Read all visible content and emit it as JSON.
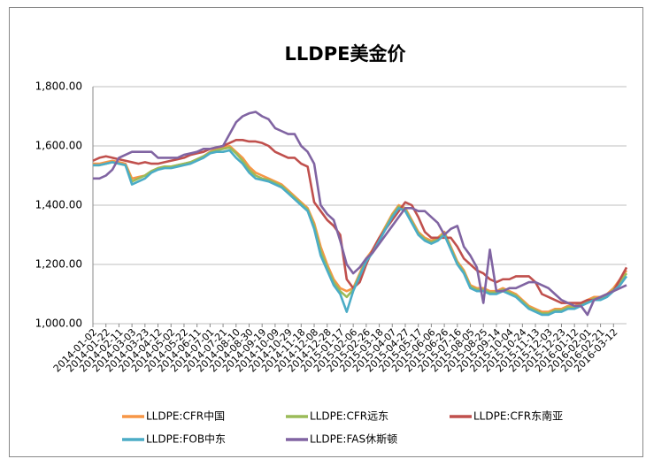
{
  "chart_data": {
    "type": "line",
    "title": "LLDPE美金价",
    "categories": [
      "2014-01-02",
      null,
      "2014-01-22",
      null,
      "2014-02-11",
      null,
      "2014-03-03",
      null,
      "2014-03-23",
      null,
      "2014-04-12",
      null,
      "2014-05-02",
      null,
      "2014-05-22",
      null,
      "2014-06-11",
      null,
      "2014-07-01",
      null,
      "2014-07-21",
      null,
      "2014-08-10",
      null,
      "2014-08-30",
      null,
      "2014-09-19",
      null,
      "2014-10-09",
      null,
      "2014-10-29",
      null,
      "2014-11-18",
      null,
      "2014-12-08",
      null,
      "2014-12-28",
      null,
      "2015-01-17",
      null,
      "2015-02-06",
      null,
      "2015-02-26",
      null,
      "2015-03-18",
      null,
      "2015-04-07",
      null,
      "2015-04-27",
      null,
      "2015-05-17",
      null,
      "2015-06-06",
      null,
      "2015-06-26",
      null,
      "2015-07-16",
      null,
      "2015-08-05",
      null,
      "2015-08-25",
      null,
      "2015-09-14",
      null,
      "2015-10-04",
      null,
      "2015-10-24",
      null,
      "2015-11-13",
      null,
      "2015-12-03",
      null,
      "2015-12-23",
      null,
      "2016-01-12",
      null,
      "2016-02-01",
      null,
      "2016-02-21",
      null,
      "2016-03-12",
      null,
      null
    ],
    "series": [
      {
        "name": "LLDPE:CFR中国",
        "color": "#f79646",
        "values": [
          1540,
          1540,
          1545,
          1550,
          1545,
          1540,
          1490,
          1495,
          1500,
          1515,
          1525,
          1530,
          1530,
          1535,
          1540,
          1545,
          1555,
          1565,
          1580,
          1590,
          1595,
          1600,
          1580,
          1560,
          1530,
          1510,
          1500,
          1490,
          1480,
          1470,
          1450,
          1430,
          1410,
          1390,
          1340,
          1260,
          1200,
          1150,
          1120,
          1110,
          1120,
          1170,
          1220,
          1250,
          1290,
          1330,
          1370,
          1400,
          1390,
          1350,
          1310,
          1290,
          1280,
          1290,
          1310,
          1260,
          1210,
          1180,
          1130,
          1120,
          1120,
          1110,
          1110,
          1120,
          1110,
          1100,
          1080,
          1060,
          1050,
          1040,
          1040,
          1050,
          1050,
          1060,
          1060,
          1070,
          1080,
          1090,
          1090,
          1100,
          1120,
          1150,
          1180
        ]
      },
      {
        "name": "LLDPE:CFR远东",
        "color": "#9bbb59",
        "values": [
          1535,
          1535,
          1540,
          1545,
          1540,
          1535,
          1480,
          1490,
          1500,
          1515,
          1525,
          1530,
          1530,
          1535,
          1540,
          1545,
          1555,
          1565,
          1578,
          1585,
          1590,
          1595,
          1575,
          1550,
          1520,
          1500,
          1490,
          1485,
          1475,
          1465,
          1445,
          1425,
          1405,
          1385,
          1330,
          1245,
          1190,
          1140,
          1110,
          1090,
          1115,
          1165,
          1215,
          1245,
          1285,
          1325,
          1365,
          1395,
          1385,
          1345,
          1305,
          1285,
          1275,
          1285,
          1305,
          1255,
          1205,
          1175,
          1125,
          1115,
          1115,
          1105,
          1105,
          1115,
          1105,
          1095,
          1075,
          1055,
          1045,
          1035,
          1035,
          1045,
          1045,
          1055,
          1055,
          1065,
          1075,
          1085,
          1085,
          1095,
          1115,
          1140,
          1170
        ]
      },
      {
        "name": "LLDPE:CFR东南亚",
        "color": "#c0504d",
        "values": [
          1550,
          1560,
          1565,
          1560,
          1555,
          1550,
          1545,
          1540,
          1545,
          1540,
          1540,
          1545,
          1550,
          1555,
          1560,
          1570,
          1575,
          1580,
          1590,
          1595,
          1600,
          1610,
          1620,
          1620,
          1615,
          1615,
          1610,
          1600,
          1580,
          1570,
          1560,
          1560,
          1540,
          1530,
          1410,
          1380,
          1350,
          1330,
          1300,
          1150,
          1120,
          1140,
          1200,
          1250,
          1290,
          1320,
          1350,
          1380,
          1410,
          1400,
          1360,
          1310,
          1290,
          1290,
          1290,
          1290,
          1260,
          1220,
          1200,
          1180,
          1170,
          1150,
          1140,
          1150,
          1150,
          1160,
          1160,
          1160,
          1140,
          1100,
          1090,
          1080,
          1070,
          1070,
          1070,
          1070,
          1080,
          1080,
          1090,
          1100,
          1110,
          1150,
          1190
        ]
      },
      {
        "name": "LLDPE:FOB中东",
        "color": "#4bacc6",
        "values": [
          1535,
          1535,
          1540,
          1545,
          1540,
          1535,
          1470,
          1480,
          1490,
          1510,
          1520,
          1525,
          1525,
          1530,
          1535,
          1540,
          1550,
          1560,
          1575,
          1580,
          1580,
          1585,
          1560,
          1540,
          1510,
          1490,
          1485,
          1480,
          1470,
          1460,
          1440,
          1420,
          1400,
          1380,
          1320,
          1230,
          1180,
          1130,
          1100,
          1040,
          1110,
          1160,
          1210,
          1240,
          1280,
          1320,
          1360,
          1390,
          1380,
          1340,
          1300,
          1280,
          1270,
          1280,
          1300,
          1250,
          1200,
          1170,
          1120,
          1110,
          1110,
          1100,
          1100,
          1110,
          1100,
          1090,
          1070,
          1050,
          1040,
          1030,
          1030,
          1040,
          1040,
          1050,
          1050,
          1060,
          1070,
          1080,
          1080,
          1090,
          1110,
          1130,
          1160
        ]
      },
      {
        "name": "LLDPE:FAS休斯顿",
        "color": "#8064a2",
        "values": [
          1490,
          1490,
          1500,
          1520,
          1560,
          1570,
          1580,
          1580,
          1580,
          1580,
          1560,
          1560,
          1560,
          1560,
          1570,
          1575,
          1580,
          1590,
          1590,
          1595,
          1600,
          1640,
          1680,
          1700,
          1710,
          1715,
          1700,
          1690,
          1660,
          1650,
          1640,
          1640,
          1600,
          1580,
          1540,
          1400,
          1370,
          1350,
          1280,
          1200,
          1170,
          1190,
          1220,
          1240,
          1270,
          1300,
          1330,
          1360,
          1390,
          1390,
          1380,
          1380,
          1360,
          1340,
          1300,
          1320,
          1330,
          1260,
          1230,
          1190,
          1070,
          1250,
          1110,
          1110,
          1120,
          1120,
          1130,
          1140,
          1140,
          1130,
          1120,
          1100,
          1080,
          1070,
          1060,
          1060,
          1030,
          1080,
          1090,
          1100,
          1110,
          1120,
          1130
        ]
      }
    ],
    "ylim": [
      1000,
      1800
    ],
    "yticks": [
      {
        "value": 1000,
        "label": "1,000.00"
      },
      {
        "value": 1200,
        "label": "1,200.00"
      },
      {
        "value": 1400,
        "label": "1,400.00"
      },
      {
        "value": 1600,
        "label": "1,600.00"
      },
      {
        "value": 1800,
        "label": "1,800.00"
      }
    ],
    "grid": true,
    "legend": "bottom"
  }
}
